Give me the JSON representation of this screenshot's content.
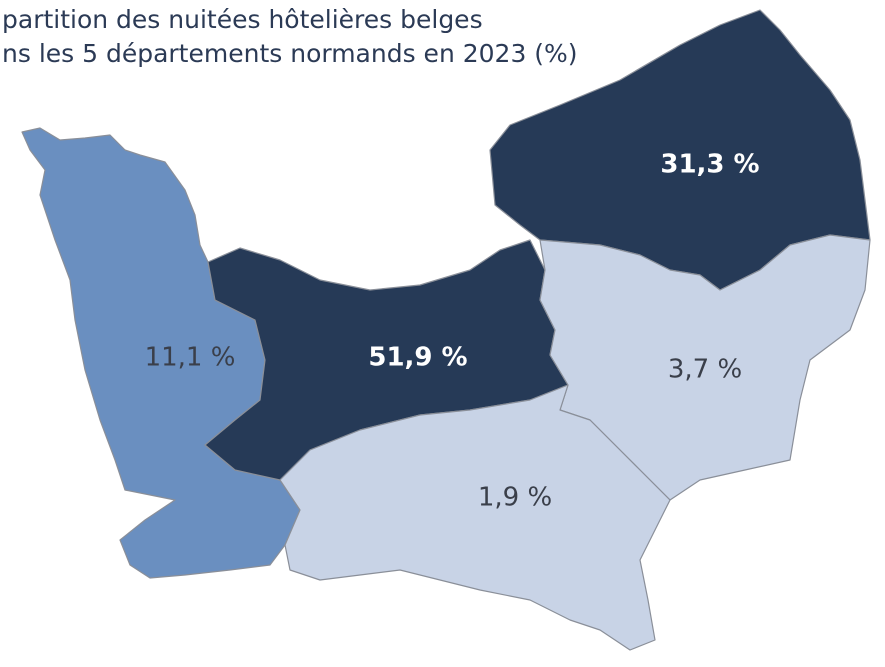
{
  "title": [
    "partition des nuitées hôtelières belges",
    "ns les 5 départements normands en 2023 (%)"
  ],
  "regions": [
    {
      "value": 11.1,
      "label": "11,1 %",
      "color": "#6a8fc0",
      "label_color": "#3a3f4a",
      "bold": false
    },
    {
      "value": 51.9,
      "label": "51,9 %",
      "color": "#263a57",
      "label_color": "#ffffff",
      "bold": true
    },
    {
      "value": 31.3,
      "label": "31,3 %",
      "color": "#263a57",
      "label_color": "#ffffff",
      "bold": true
    },
    {
      "value": 3.7,
      "label": "3,7 %",
      "color": "#c8d3e6",
      "label_color": "#3a3f4a",
      "bold": false
    },
    {
      "value": 1.9,
      "label": "1,9 %",
      "color": "#c8d3e6",
      "label_color": "#3a3f4a",
      "bold": false
    }
  ]
}
